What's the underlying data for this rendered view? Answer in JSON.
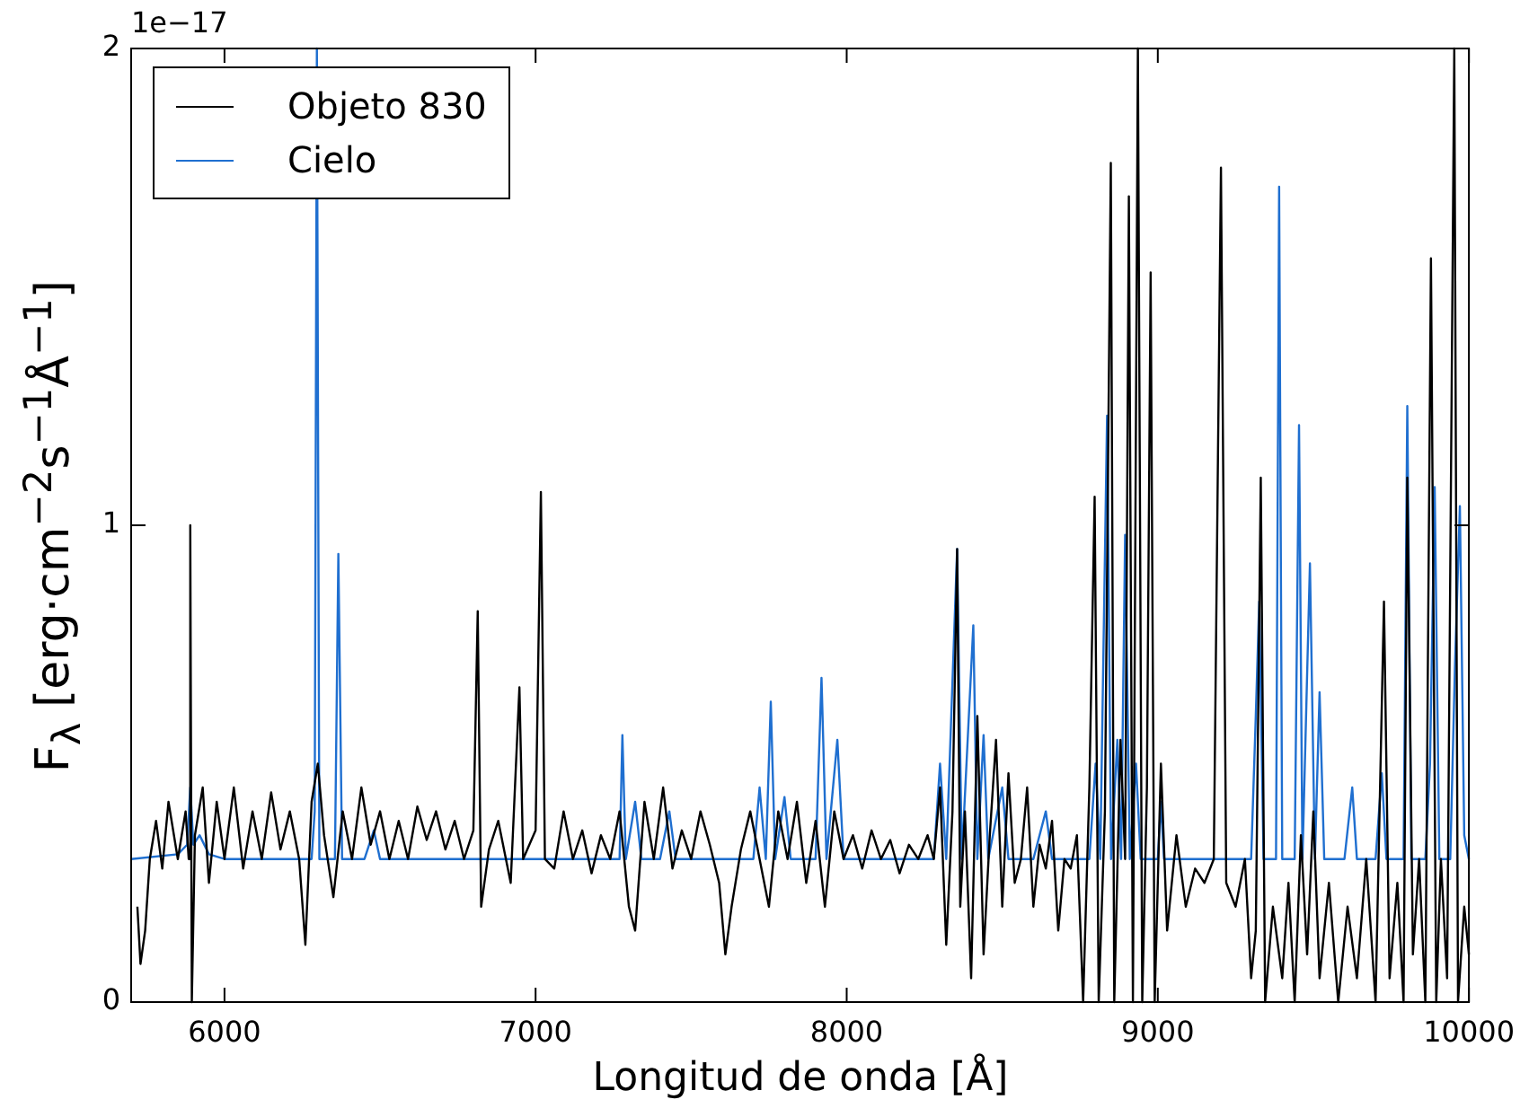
{
  "chart_data": {
    "type": "line",
    "xlabel": "Longitud de onda [Å]",
    "ylabel": "F$_{λ}$ [erg·cm$^{−2}$s$^{−1}$Å$^{−1}$]",
    "annotations": [
      "1e−17"
    ],
    "xlim": [
      5700,
      10000
    ],
    "xticks": [
      6000,
      7000,
      8000,
      9000,
      10000
    ],
    "ylim": [
      0,
      2
    ],
    "yticks": [
      0,
      1,
      2
    ],
    "grid": false,
    "legend": "top left",
    "marker": "none",
    "line_style": "solid",
    "series": [
      {
        "name": "Objeto 830",
        "color": "#000000",
        "x": [
          5720,
          5730,
          5745,
          5760,
          5780,
          5800,
          5820,
          5850,
          5875,
          5885,
          5890,
          5895,
          5905,
          5930,
          5950,
          5975,
          6000,
          6030,
          6060,
          6090,
          6120,
          6150,
          6180,
          6210,
          6240,
          6260,
          6280,
          6300,
          6320,
          6350,
          6380,
          6410,
          6440,
          6470,
          6500,
          6530,
          6560,
          6590,
          6620,
          6650,
          6680,
          6710,
          6740,
          6770,
          6800,
          6814,
          6825,
          6850,
          6880,
          6920,
          6948,
          6960,
          7000,
          7017,
          7030,
          7060,
          7090,
          7120,
          7150,
          7180,
          7210,
          7240,
          7270,
          7300,
          7320,
          7350,
          7380,
          7410,
          7440,
          7470,
          7500,
          7530,
          7560,
          7590,
          7610,
          7630,
          7660,
          7690,
          7720,
          7750,
          7780,
          7810,
          7840,
          7870,
          7900,
          7930,
          7960,
          7990,
          8020,
          8050,
          8080,
          8110,
          8140,
          8170,
          8200,
          8230,
          8260,
          8280,
          8300,
          8320,
          8340,
          8355,
          8365,
          8380,
          8400,
          8420,
          8440,
          8460,
          8480,
          8500,
          8520,
          8540,
          8560,
          8580,
          8600,
          8620,
          8640,
          8660,
          8680,
          8700,
          8720,
          8740,
          8760,
          8780,
          8797,
          8810,
          8830,
          8849,
          8860,
          8880,
          8895,
          8907,
          8920,
          8936,
          8950,
          8965,
          8977,
          8990,
          9010,
          9030,
          9060,
          9090,
          9120,
          9150,
          9180,
          9203,
          9220,
          9250,
          9280,
          9300,
          9315,
          9331,
          9345,
          9370,
          9400,
          9420,
          9440,
          9460,
          9480,
          9500,
          9520,
          9550,
          9580,
          9610,
          9640,
          9670,
          9700,
          9727,
          9745,
          9770,
          9790,
          9802,
          9820,
          9840,
          9860,
          9878,
          9895,
          9910,
          9930,
          9953,
          9965,
          9985,
          10000
        ],
        "values": [
          0.2,
          0.08,
          0.15,
          0.3,
          0.38,
          0.28,
          0.42,
          0.3,
          0.4,
          0.3,
          1.0,
          0.0,
          0.35,
          0.45,
          0.25,
          0.42,
          0.3,
          0.45,
          0.28,
          0.4,
          0.3,
          0.44,
          0.32,
          0.4,
          0.3,
          0.12,
          0.42,
          0.5,
          0.35,
          0.22,
          0.4,
          0.3,
          0.45,
          0.33,
          0.4,
          0.3,
          0.38,
          0.3,
          0.41,
          0.34,
          0.4,
          0.32,
          0.38,
          0.3,
          0.36,
          0.82,
          0.2,
          0.32,
          0.38,
          0.25,
          0.66,
          0.3,
          0.36,
          1.07,
          0.3,
          0.28,
          0.4,
          0.3,
          0.36,
          0.27,
          0.35,
          0.3,
          0.4,
          0.2,
          0.15,
          0.42,
          0.3,
          0.45,
          0.28,
          0.36,
          0.3,
          0.4,
          0.33,
          0.25,
          0.1,
          0.2,
          0.32,
          0.4,
          0.3,
          0.2,
          0.4,
          0.3,
          0.42,
          0.25,
          0.38,
          0.2,
          0.4,
          0.3,
          0.35,
          0.28,
          0.36,
          0.3,
          0.34,
          0.27,
          0.33,
          0.3,
          0.35,
          0.3,
          0.45,
          0.12,
          0.4,
          0.95,
          0.2,
          0.4,
          0.05,
          0.6,
          0.1,
          0.35,
          0.55,
          0.2,
          0.48,
          0.25,
          0.3,
          0.45,
          0.2,
          0.33,
          0.28,
          0.38,
          0.15,
          0.3,
          0.28,
          0.35,
          0.0,
          0.45,
          1.06,
          0.0,
          0.4,
          1.76,
          0.0,
          0.55,
          0.3,
          1.69,
          0.0,
          2.0,
          0.0,
          0.45,
          1.53,
          0.0,
          0.5,
          0.15,
          0.35,
          0.2,
          0.28,
          0.25,
          0.3,
          1.75,
          0.25,
          0.2,
          0.3,
          0.05,
          0.15,
          1.1,
          0.0,
          0.2,
          0.05,
          0.25,
          0.0,
          0.35,
          0.1,
          0.4,
          0.05,
          0.25,
          0.0,
          0.2,
          0.05,
          0.3,
          0.0,
          0.84,
          0.05,
          0.25,
          0.0,
          1.1,
          0.1,
          0.3,
          0.0,
          1.56,
          0.0,
          0.3,
          0.05,
          2.0,
          0.0,
          0.2,
          0.1
        ]
      },
      {
        "name": "Cielo",
        "color": "#1f6fd0",
        "x": [
          5700,
          5850,
          5880,
          5890,
          5900,
          5920,
          5950,
          6000,
          6280,
          6290,
          6297,
          6305,
          6355,
          6366,
          6378,
          6450,
          6480,
          6500,
          7270,
          7279,
          7290,
          7320,
          7340,
          7400,
          7430,
          7450,
          7700,
          7720,
          7740,
          7756,
          7770,
          7800,
          7820,
          7900,
          7919,
          7935,
          7970,
          7990,
          8280,
          8300,
          8320,
          8355,
          8370,
          8407,
          8420,
          8440,
          8455,
          8500,
          8520,
          8600,
          8640,
          8660,
          8780,
          8800,
          8815,
          8837,
          8850,
          8870,
          8882,
          8895,
          8910,
          8930,
          8945,
          9000,
          9010,
          9020,
          9300,
          9315,
          9326,
          9340,
          9380,
          9390,
          9400,
          9440,
          9454,
          9465,
          9489,
          9505,
          9520,
          9535,
          9600,
          9625,
          9640,
          9700,
          9720,
          9735,
          9790,
          9802,
          9815,
          9860,
          9875,
          9890,
          9905,
          9940,
          9955,
          9971,
          9985,
          10000
        ],
        "values": [
          0.3,
          0.31,
          0.33,
          0.45,
          0.33,
          0.35,
          0.31,
          0.3,
          0.3,
          0.4,
          2.0,
          0.3,
          0.3,
          0.94,
          0.3,
          0.3,
          0.36,
          0.3,
          0.3,
          0.56,
          0.3,
          0.42,
          0.3,
          0.3,
          0.4,
          0.3,
          0.3,
          0.45,
          0.3,
          0.63,
          0.3,
          0.43,
          0.3,
          0.3,
          0.68,
          0.3,
          0.55,
          0.3,
          0.3,
          0.5,
          0.3,
          0.95,
          0.3,
          0.79,
          0.3,
          0.56,
          0.3,
          0.45,
          0.3,
          0.3,
          0.4,
          0.3,
          0.3,
          0.5,
          0.3,
          1.23,
          0.3,
          0.55,
          0.3,
          0.98,
          0.3,
          0.5,
          0.3,
          0.3,
          0.42,
          0.3,
          0.3,
          0.6,
          0.84,
          0.3,
          0.3,
          1.71,
          0.3,
          0.3,
          1.21,
          0.3,
          0.92,
          0.3,
          0.65,
          0.3,
          0.3,
          0.45,
          0.3,
          0.3,
          0.48,
          0.3,
          0.3,
          1.25,
          0.3,
          0.3,
          0.5,
          1.08,
          0.3,
          0.3,
          0.7,
          1.04,
          0.35,
          0.3
        ]
      }
    ]
  }
}
